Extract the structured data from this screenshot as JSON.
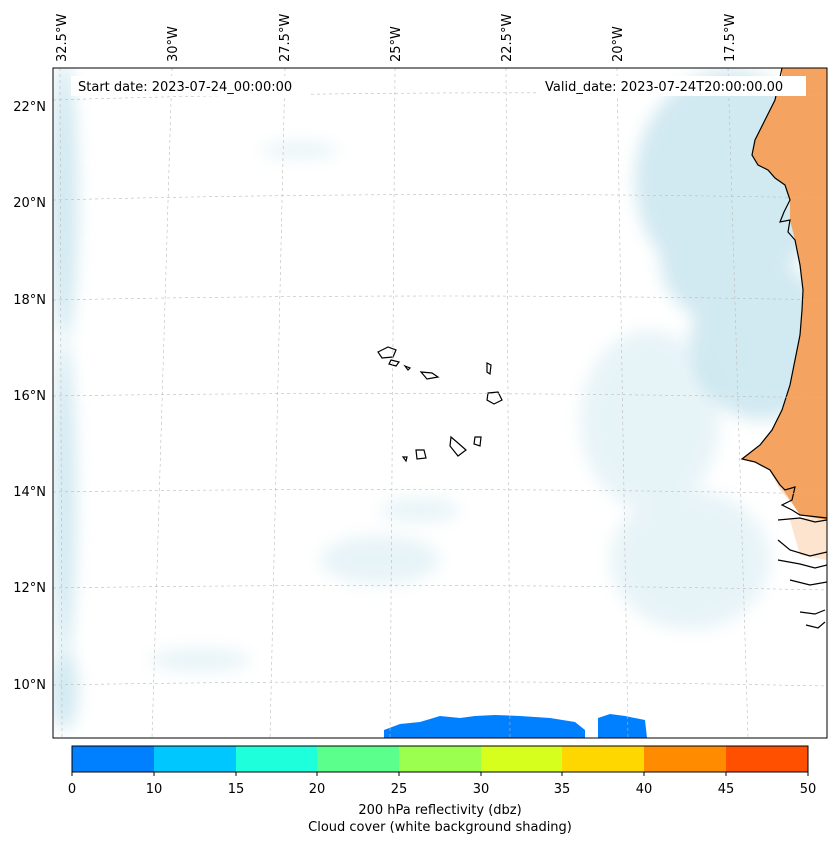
{
  "map": {
    "start_date_text": "Start date: 2023-07-24_00:00:00",
    "valid_date_text": "Valid_date: 2023-07-24T20:00:00.00",
    "lon_ticks": [
      "32.5°W",
      "30°W",
      "27.5°W",
      "25°W",
      "22.5°W",
      "20°W",
      "17.5°W"
    ],
    "lat_ticks": [
      "22°N",
      "20°N",
      "18°N",
      "16°N",
      "14°N",
      "12°N",
      "10°N"
    ],
    "land_colour": "#f4a460",
    "cloud_colour": "#add8e6",
    "coastline_colour": "#000000"
  },
  "colorbar": {
    "ticks": [
      "0",
      "10",
      "15",
      "20",
      "25",
      "30",
      "35",
      "40",
      "45",
      "50"
    ],
    "colors": [
      "#0080ff",
      "#00c8ff",
      "#1effdc",
      "#5aff8c",
      "#9bff50",
      "#d7ff1e",
      "#ffd700",
      "#ff8c00",
      "#ff5000"
    ],
    "label_line1": "200 hPa reflectivity (dbz)",
    "label_line2": "Cloud cover (white background shading)"
  }
}
